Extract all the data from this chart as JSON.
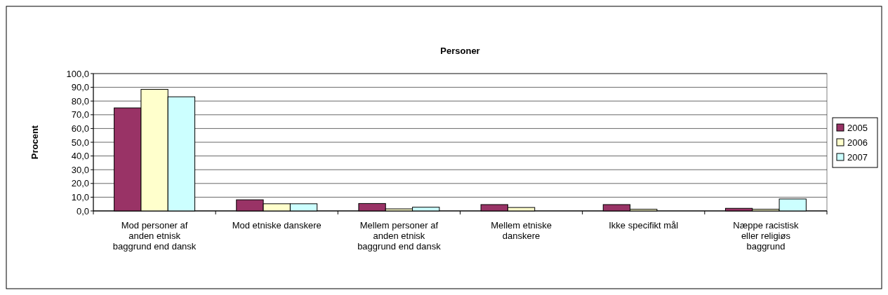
{
  "chart_data": {
    "type": "bar",
    "title": "Personer",
    "ylabel": "Procent",
    "categories": [
      "Mod personer af anden etnisk baggrund end dansk",
      "Mod etniske danskere",
      "Mellem personer af anden etnisk baggrund end dansk",
      "Mellem etniske danskere",
      "Ikke specifikt mål",
      "Næppe racistisk eller religiøs baggrund"
    ],
    "series": [
      {
        "name": "2005",
        "color": "#993366",
        "values": [
          75.0,
          8.1,
          5.4,
          4.6,
          4.6,
          1.9
        ]
      },
      {
        "name": "2006",
        "color": "#ffffcc",
        "values": [
          88.5,
          5.2,
          1.5,
          2.5,
          1.2,
          1.2
        ]
      },
      {
        "name": "2007",
        "color": "#ccffff",
        "values": [
          83.1,
          5.2,
          2.7,
          0,
          0,
          8.7
        ]
      }
    ],
    "ylim": [
      0,
      100
    ],
    "yticks": [
      {
        "value": 0,
        "label": "0,0"
      },
      {
        "value": 10,
        "label": "10,0"
      },
      {
        "value": 20,
        "label": "20,0"
      },
      {
        "value": 30,
        "label": "30,0"
      },
      {
        "value": 40,
        "label": "40,0"
      },
      {
        "value": 50,
        "label": "50,0"
      },
      {
        "value": 60,
        "label": "60,0"
      },
      {
        "value": 70,
        "label": "70,0"
      },
      {
        "value": 80,
        "label": "80,0"
      },
      {
        "value": 90,
        "label": "90,0"
      },
      {
        "value": 100,
        "label": "100,0"
      }
    ],
    "grid": "y",
    "legend": "right"
  }
}
